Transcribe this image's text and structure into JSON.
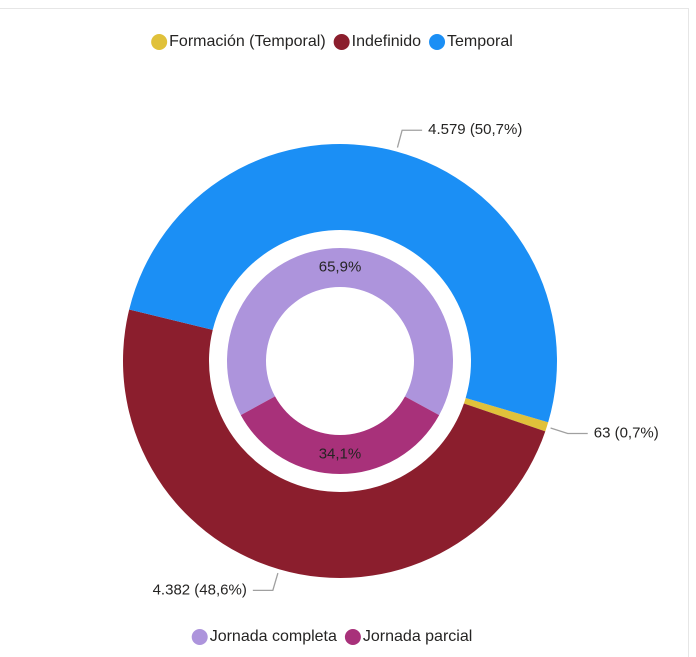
{
  "chart_data": [
    {
      "type": "donut",
      "categories": [
        "Formación (Temporal)",
        "Indefinido",
        "Temporal"
      ],
      "values": [
        63,
        4382,
        4579
      ],
      "value_labels": [
        "63 (0,7%)",
        "4.382 (48,6%)",
        "4.579 (50,7%)"
      ],
      "colors": [
        "#e0c13a",
        "#8b1e2d",
        "#1b8ff5"
      ],
      "legend": "top"
    },
    {
      "type": "donut",
      "categories": [
        "Jornada completa",
        "Jornada parcial"
      ],
      "values": [
        65.9,
        34.1
      ],
      "value_labels": [
        "65,9%",
        "34,1%"
      ],
      "colors": [
        "#ad94dc",
        "#a8317a"
      ],
      "legend": "bottom"
    }
  ]
}
